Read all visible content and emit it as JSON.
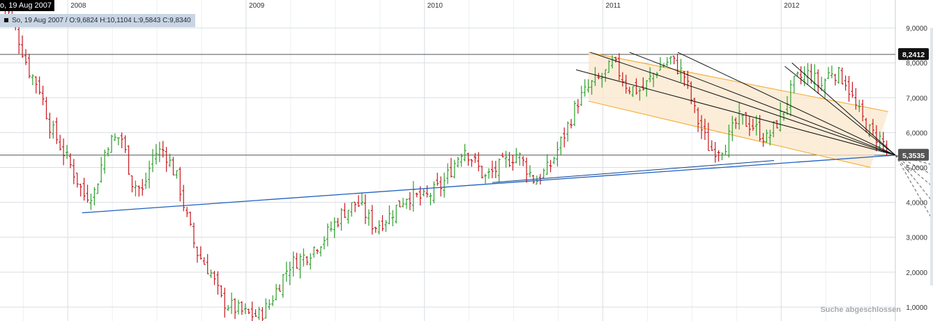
{
  "header": {
    "date_tag": "o, 19 Aug 2007",
    "ohlc": {
      "date": "So, 19 Aug 2007",
      "open": "O:9,6824",
      "high": "H:10,1104",
      "low": "L:9,5843",
      "close": "C:9,8340"
    }
  },
  "status": "Suche abgeschlossen",
  "colors": {
    "up": "#2ca02c",
    "down": "#c8161d",
    "trendline": "#1f5fbf",
    "channel": "#f5a623",
    "channel_fill": "#fbe7cc",
    "grid": "#d9dde2",
    "fan": "#111111"
  },
  "chart_data": {
    "type": "ohlc-bar",
    "x_tick_labels": [
      "2008",
      "2009",
      "2010",
      "2011",
      "2012"
    ],
    "x_ticks": [
      2008,
      2009,
      2010,
      2011,
      2012
    ],
    "xlim": [
      2007.62,
      2012.64
    ],
    "ylim": [
      0.6,
      9.8
    ],
    "y_tick_values": [
      1,
      2,
      3,
      4,
      5,
      6,
      7,
      8,
      9
    ],
    "y_tick_labels": [
      "1,0000",
      "2,0000",
      "3,0000",
      "4,0000",
      "5,0000",
      "6,0000",
      "7,0000",
      "8,0000",
      "9,0000"
    ],
    "price_markers": [
      {
        "label": "8,2412",
        "value": 8.2412
      },
      {
        "label": "5,3535",
        "value": 5.3535
      }
    ],
    "anchors": [
      [
        2007.62,
        9.9
      ],
      [
        2007.7,
        9.1
      ],
      [
        2007.78,
        7.8
      ],
      [
        2007.84,
        7.3
      ],
      [
        2007.9,
        6.2
      ],
      [
        2007.96,
        5.6
      ],
      [
        2008.03,
        4.9
      ],
      [
        2008.09,
        4.2
      ],
      [
        2008.15,
        4.3
      ],
      [
        2008.22,
        5.7
      ],
      [
        2008.3,
        5.9
      ],
      [
        2008.36,
        4.6
      ],
      [
        2008.42,
        4.3
      ],
      [
        2008.48,
        5.4
      ],
      [
        2008.54,
        5.5
      ],
      [
        2008.62,
        4.6
      ],
      [
        2008.66,
        3.7
      ],
      [
        2008.72,
        2.6
      ],
      [
        2008.8,
        2.0
      ],
      [
        2008.86,
        1.2
      ],
      [
        2008.92,
        1.0
      ],
      [
        2009.0,
        0.8
      ],
      [
        2009.07,
        0.75
      ],
      [
        2009.12,
        1.0
      ],
      [
        2009.18,
        1.6
      ],
      [
        2009.24,
        2.2
      ],
      [
        2009.34,
        2.5
      ],
      [
        2009.44,
        3.0
      ],
      [
        2009.54,
        3.7
      ],
      [
        2009.62,
        4.0
      ],
      [
        2009.72,
        3.3
      ],
      [
        2009.8,
        3.6
      ],
      [
        2009.9,
        4.2
      ],
      [
        2010.0,
        4.1
      ],
      [
        2010.1,
        4.5
      ],
      [
        2010.22,
        5.6
      ],
      [
        2010.34,
        4.7
      ],
      [
        2010.44,
        5.1
      ],
      [
        2010.52,
        5.4
      ],
      [
        2010.62,
        4.6
      ],
      [
        2010.7,
        5.0
      ],
      [
        2010.78,
        5.9
      ],
      [
        2010.86,
        6.9
      ],
      [
        2010.94,
        7.4
      ],
      [
        2011.0,
        7.6
      ],
      [
        2011.06,
        8.0
      ],
      [
        2011.14,
        7.3
      ],
      [
        2011.22,
        7.2
      ],
      [
        2011.3,
        7.8
      ],
      [
        2011.38,
        8.1
      ],
      [
        2011.46,
        7.6
      ],
      [
        2011.52,
        6.5
      ],
      [
        2011.6,
        5.5
      ],
      [
        2011.68,
        5.6
      ],
      [
        2011.76,
        6.4
      ],
      [
        2011.84,
        6.2
      ],
      [
        2011.92,
        5.8
      ],
      [
        2012.0,
        6.5
      ],
      [
        2012.08,
        7.5
      ],
      [
        2012.16,
        7.7
      ],
      [
        2012.22,
        7.3
      ],
      [
        2012.28,
        7.8
      ],
      [
        2012.36,
        7.5
      ],
      [
        2012.42,
        6.7
      ],
      [
        2012.5,
        6.0
      ],
      [
        2012.56,
        5.8
      ],
      [
        2012.6,
        5.5
      ]
    ],
    "trendline_blue": [
      [
        2008.08,
        3.7
      ],
      [
        2012.64,
        5.3535
      ]
    ],
    "trendline_blue_extension": [
      [
        2010.38,
        4.57
      ],
      [
        2011.96,
        5.2
      ]
    ],
    "channel_orange": {
      "upper": [
        [
          2010.92,
          8.3
        ],
        [
          2012.6,
          6.6
        ]
      ],
      "lower": [
        [
          2010.92,
          6.9
        ],
        [
          2012.5,
          5.0
        ]
      ]
    },
    "fan_lines": [
      {
        "from": [
          2010.85,
          7.8
        ],
        "to": [
          2012.64,
          5.3535
        ]
      },
      {
        "from": [
          2010.93,
          8.3
        ],
        "to": [
          2012.64,
          5.3535
        ]
      },
      {
        "from": [
          2011.15,
          8.3
        ],
        "to": [
          2012.64,
          5.3535
        ]
      },
      {
        "from": [
          2011.42,
          8.3
        ],
        "to": [
          2012.64,
          5.3535
        ]
      },
      {
        "from": [
          2012.06,
          8.0
        ],
        "to": [
          2012.64,
          5.3535
        ]
      },
      {
        "from": [
          2012.02,
          7.9
        ],
        "to": [
          2012.64,
          5.3535
        ]
      }
    ],
    "fan_projection_slopes": [
      -0.3,
      -0.9,
      -1.6,
      -2.5,
      -3.6
    ]
  }
}
